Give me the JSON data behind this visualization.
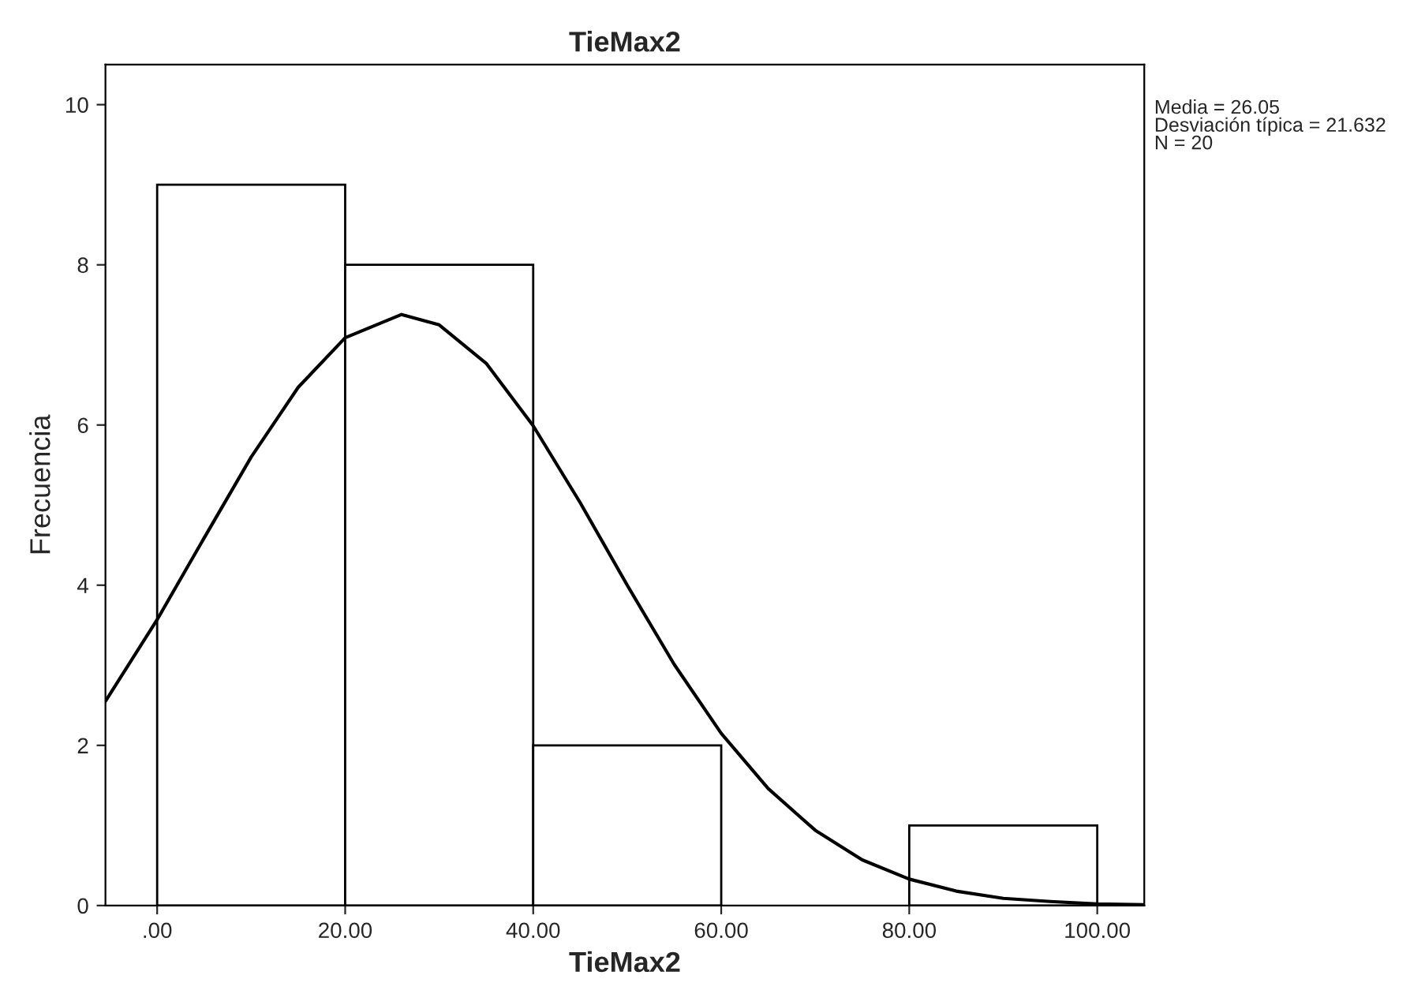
{
  "chart_data": {
    "type": "histogram",
    "title": "TieMax2",
    "xlabel": "TieMax2",
    "ylabel": "Frecuencia",
    "bins": [
      0,
      20,
      40,
      60,
      80,
      100
    ],
    "values": [
      9,
      8,
      2,
      0,
      1
    ],
    "color": "#ffffff",
    "series": [
      {
        "type": "line",
        "color": "#000000",
        "x": [
          -5.5,
          0,
          5,
          10,
          15,
          20,
          26,
          30,
          35,
          40,
          45,
          50,
          55,
          60,
          65,
          70,
          75,
          80,
          85,
          90,
          95,
          100,
          105
        ],
        "values": [
          2.55,
          3.57,
          4.59,
          5.6,
          6.47,
          7.09,
          7.38,
          7.25,
          6.77,
          5.99,
          5.03,
          4.0,
          3.01,
          2.15,
          1.46,
          0.94,
          0.57,
          0.33,
          0.18,
          0.09,
          0.05,
          0.02,
          0.01
        ]
      }
    ],
    "xlim": [
      -5.5,
      105
    ],
    "ylim": [
      0,
      10.5
    ],
    "xticks": [
      {
        "value": 0,
        "label": ".00"
      },
      {
        "value": 20,
        "label": "20.00"
      },
      {
        "value": 40,
        "label": "40.00"
      },
      {
        "value": 60,
        "label": "60.00"
      },
      {
        "value": 80,
        "label": "80.00"
      },
      {
        "value": 100,
        "label": "100.00"
      }
    ],
    "yticks": [
      0,
      2,
      4,
      6,
      8,
      10
    ],
    "grid": false,
    "legend": false,
    "annotations": [
      "Media = 26.05\nDesviación típica = 21.632\nN = 20"
    ]
  }
}
